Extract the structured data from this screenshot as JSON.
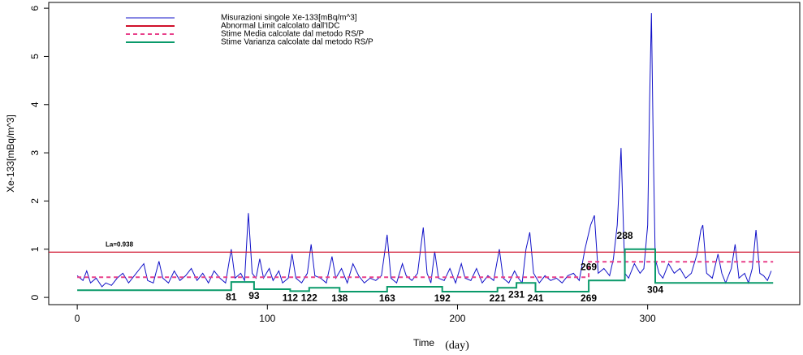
{
  "chart_data": {
    "type": "line",
    "y_label": "Xe-133[mBq/m^3]",
    "x_label": "Time",
    "x_label_unit": "(day)",
    "annotation": "La=0.938",
    "xlim": [
      -15,
      380
    ],
    "xticks": [
      0,
      100,
      200,
      300
    ],
    "ylim": [
      -0.15,
      6.12
    ],
    "yticks": [
      0,
      1,
      2,
      3,
      4,
      5,
      6
    ],
    "change_points": [
      81,
      93,
      112,
      122,
      138,
      163,
      192,
      221,
      231,
      241,
      269,
      269,
      288,
      304
    ],
    "series": [
      {
        "name": "Misurazioni singole Xe-133[mBq/m^3]",
        "color": "#1010c8",
        "dash": false,
        "x": [
          0,
          3,
          5,
          7,
          10,
          13,
          15,
          18,
          21,
          24,
          27,
          30,
          33,
          35,
          37,
          40,
          43,
          45,
          48,
          51,
          54,
          57,
          60,
          63,
          66,
          69,
          72,
          75,
          78,
          81,
          83,
          86,
          88,
          90,
          92,
          94,
          96,
          98,
          101,
          103,
          106,
          108,
          111,
          113,
          115,
          118,
          121,
          123,
          125,
          128,
          131,
          134,
          136,
          139,
          142,
          145,
          148,
          151,
          154,
          157,
          160,
          163,
          165,
          168,
          171,
          173,
          176,
          179,
          182,
          184,
          186,
          188,
          190,
          193,
          196,
          199,
          202,
          204,
          207,
          210,
          213,
          216,
          219,
          222,
          224,
          227,
          230,
          232,
          234,
          236,
          238,
          240,
          243,
          246,
          249,
          252,
          255,
          258,
          261,
          264,
          267,
          270,
          272,
          274,
          277,
          280,
          282,
          284,
          286,
          288,
          290,
          293,
          296,
          298,
          300,
          301,
          302,
          303,
          304,
          306,
          308,
          311,
          314,
          317,
          320,
          323,
          326,
          328,
          329,
          331,
          334,
          337,
          339,
          341,
          344,
          346,
          348,
          351,
          353,
          355,
          357,
          359,
          361,
          363,
          365
        ],
        "values": [
          0.45,
          0.35,
          0.55,
          0.3,
          0.4,
          0.22,
          0.3,
          0.25,
          0.4,
          0.5,
          0.3,
          0.45,
          0.6,
          0.7,
          0.35,
          0.3,
          0.75,
          0.4,
          0.3,
          0.55,
          0.35,
          0.45,
          0.6,
          0.35,
          0.5,
          0.3,
          0.55,
          0.4,
          0.3,
          1.0,
          0.4,
          0.5,
          0.35,
          1.75,
          0.5,
          0.4,
          0.8,
          0.4,
          0.6,
          0.35,
          0.55,
          0.3,
          0.4,
          0.9,
          0.4,
          0.3,
          0.5,
          1.1,
          0.45,
          0.4,
          0.3,
          0.85,
          0.4,
          0.6,
          0.3,
          0.7,
          0.45,
          0.3,
          0.4,
          0.35,
          0.45,
          1.3,
          0.4,
          0.3,
          0.7,
          0.45,
          0.35,
          0.5,
          1.45,
          0.5,
          0.3,
          0.95,
          0.4,
          0.35,
          0.6,
          0.3,
          0.7,
          0.4,
          0.35,
          0.6,
          0.3,
          0.45,
          0.35,
          1.0,
          0.4,
          0.3,
          0.55,
          0.4,
          0.3,
          1.0,
          1.35,
          0.5,
          0.3,
          0.45,
          0.35,
          0.4,
          0.3,
          0.45,
          0.5,
          0.35,
          1.0,
          1.5,
          1.7,
          0.5,
          0.6,
          0.45,
          0.8,
          1.5,
          3.1,
          0.5,
          0.4,
          0.7,
          0.5,
          0.6,
          1.5,
          4.0,
          5.9,
          3.0,
          0.8,
          0.5,
          0.4,
          0.7,
          0.5,
          0.6,
          0.4,
          0.5,
          0.9,
          1.4,
          1.5,
          0.5,
          0.4,
          0.9,
          0.5,
          0.3,
          0.6,
          1.1,
          0.4,
          0.5,
          0.3,
          0.6,
          1.4,
          0.5,
          0.45,
          0.35,
          0.55
        ]
      },
      {
        "name": "Abnormal Limit calcolato dall'IDC",
        "color": "#d0102a",
        "dash": false,
        "x": [
          -15,
          380
        ],
        "values": [
          0.938,
          0.938
        ]
      },
      {
        "name": "Stime Media calcolate dal metodo RS/P",
        "color": "#e8408a",
        "dash": true,
        "x": [
          0,
          269,
          269,
          366
        ],
        "values": [
          0.42,
          0.42,
          0.74,
          0.74
        ]
      },
      {
        "name": "Stime Varianza calcolate dal metodo RS/P",
        "color": "#0a9a6a",
        "dash": false,
        "x": [
          0,
          81,
          81,
          93,
          93,
          112,
          112,
          122,
          122,
          138,
          138,
          163,
          163,
          192,
          192,
          221,
          221,
          231,
          231,
          241,
          241,
          269,
          269,
          288,
          288,
          304,
          304,
          366
        ],
        "values": [
          0.15,
          0.15,
          0.32,
          0.32,
          0.17,
          0.17,
          0.13,
          0.13,
          0.2,
          0.2,
          0.12,
          0.12,
          0.22,
          0.22,
          0.12,
          0.12,
          0.2,
          0.2,
          0.3,
          0.3,
          0.12,
          0.12,
          0.35,
          0.35,
          1.0,
          1.0,
          0.3,
          0.3
        ]
      }
    ]
  }
}
